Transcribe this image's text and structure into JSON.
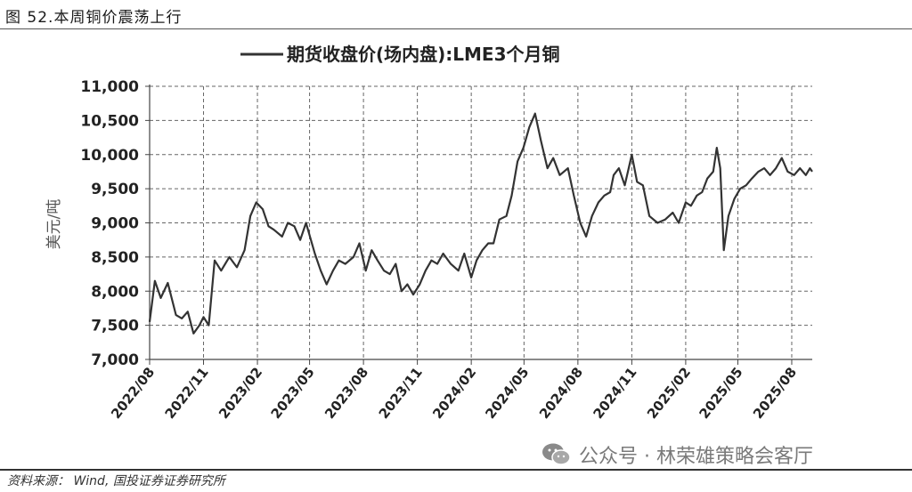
{
  "figure": {
    "title": "图 52.本周铜价震荡上行",
    "source": "资料来源： Wind,  国投证券证券研究所",
    "watermark": "公众号 · 林荣雄策略会客厅",
    "watermark_icon": "wechat-icon"
  },
  "chart_data": {
    "type": "line",
    "title": "",
    "xlabel": "",
    "ylabel": "美元/吨",
    "ylim": [
      7000,
      11000
    ],
    "yticks": [
      7000,
      7500,
      8000,
      8500,
      9000,
      9500,
      10000,
      10500,
      11000
    ],
    "ytick_labels": [
      "7,000",
      "7,500",
      "8,000",
      "8,500",
      "9,000",
      "9,500",
      "10,000",
      "10,500",
      "11,000"
    ],
    "xticks": [
      "2022/08",
      "2022/11",
      "2023/02",
      "2023/05",
      "2023/08",
      "2023/11",
      "2024/02",
      "2024/05",
      "2024/08",
      "2024/11",
      "2025/02",
      "2025/05",
      "2025/08"
    ],
    "grid": true,
    "legend_position": "top-center",
    "line_color": "#333333",
    "series": [
      {
        "name": "期货收盘价(场内盘):LME3个月铜",
        "x": [
          "2022/08/01",
          "2022/08/10",
          "2022/08/20",
          "2022/09/01",
          "2022/09/15",
          "2022/09/25",
          "2022/10/05",
          "2022/10/15",
          "2022/10/25",
          "2022/11/01",
          "2022/11/10",
          "2022/11/20",
          "2022/12/01",
          "2022/12/15",
          "2022/12/28",
          "2023/01/10",
          "2023/01/20",
          "2023/01/30",
          "2023/02/10",
          "2023/02/20",
          "2023/03/01",
          "2023/03/15",
          "2023/03/25",
          "2023/04/05",
          "2023/04/15",
          "2023/04/25",
          "2023/05/10",
          "2023/05/20",
          "2023/05/30",
          "2023/06/10",
          "2023/06/20",
          "2023/07/01",
          "2023/07/15",
          "2023/07/25",
          "2023/08/05",
          "2023/08/15",
          "2023/08/25",
          "2023/09/05",
          "2023/09/15",
          "2023/09/25",
          "2023/10/05",
          "2023/10/15",
          "2023/10/25",
          "2023/11/05",
          "2023/11/15",
          "2023/11/25",
          "2023/12/05",
          "2023/12/15",
          "2023/12/28",
          "2024/01/10",
          "2024/01/20",
          "2024/02/01",
          "2024/02/10",
          "2024/02/20",
          "2024/03/01",
          "2024/03/10",
          "2024/03/20",
          "2024/04/01",
          "2024/04/10",
          "2024/04/20",
          "2024/04/30",
          "2024/05/10",
          "2024/05/20",
          "2024/05/30",
          "2024/06/10",
          "2024/06/20",
          "2024/07/01",
          "2024/07/15",
          "2024/07/25",
          "2024/08/05",
          "2024/08/15",
          "2024/08/25",
          "2024/09/05",
          "2024/09/15",
          "2024/09/25",
          "2024/10/01",
          "2024/10/10",
          "2024/10/20",
          "2024/11/01",
          "2024/11/10",
          "2024/11/20",
          "2024/12/01",
          "2024/12/15",
          "2024/12/28",
          "2025/01/10",
          "2025/01/20",
          "2025/02/01",
          "2025/02/10",
          "2025/02/20",
          "2025/03/01",
          "2025/03/10",
          "2025/03/20",
          "2025/03/26",
          "2025/04/01",
          "2025/04/07",
          "2025/04/15",
          "2025/04/25",
          "2025/05/05",
          "2025/05/15",
          "2025/05/25",
          "2025/06/05",
          "2025/06/15",
          "2025/06/25",
          "2025/07/05",
          "2025/07/15",
          "2025/07/25",
          "2025/08/05",
          "2025/08/15",
          "2025/08/25",
          "2025/09/01",
          "2025/09/05"
        ],
        "y": [
          7550,
          8150,
          7900,
          8120,
          7650,
          7600,
          7700,
          7380,
          7500,
          7620,
          7500,
          8450,
          8300,
          8500,
          8350,
          8600,
          9100,
          9300,
          9200,
          8950,
          8900,
          8800,
          9000,
          8950,
          8750,
          9000,
          8550,
          8300,
          8100,
          8300,
          8450,
          8400,
          8500,
          8700,
          8300,
          8600,
          8450,
          8300,
          8250,
          8400,
          8000,
          8100,
          7950,
          8100,
          8300,
          8450,
          8400,
          8550,
          8400,
          8300,
          8550,
          8200,
          8450,
          8600,
          8700,
          8700,
          9050,
          9100,
          9400,
          9900,
          10100,
          10400,
          10600,
          10200,
          9800,
          9950,
          9700,
          9800,
          9400,
          9000,
          8800,
          9100,
          9300,
          9400,
          9450,
          9700,
          9800,
          9550,
          10000,
          9600,
          9550,
          9100,
          9000,
          9050,
          9150,
          9000,
          9300,
          9250,
          9400,
          9450,
          9650,
          9750,
          10100,
          9800,
          8600,
          9100,
          9350,
          9500,
          9550,
          9650,
          9750,
          9800,
          9700,
          9800,
          9950,
          9750,
          9700,
          9800,
          9700,
          9800,
          9750
        ]
      }
    ]
  }
}
